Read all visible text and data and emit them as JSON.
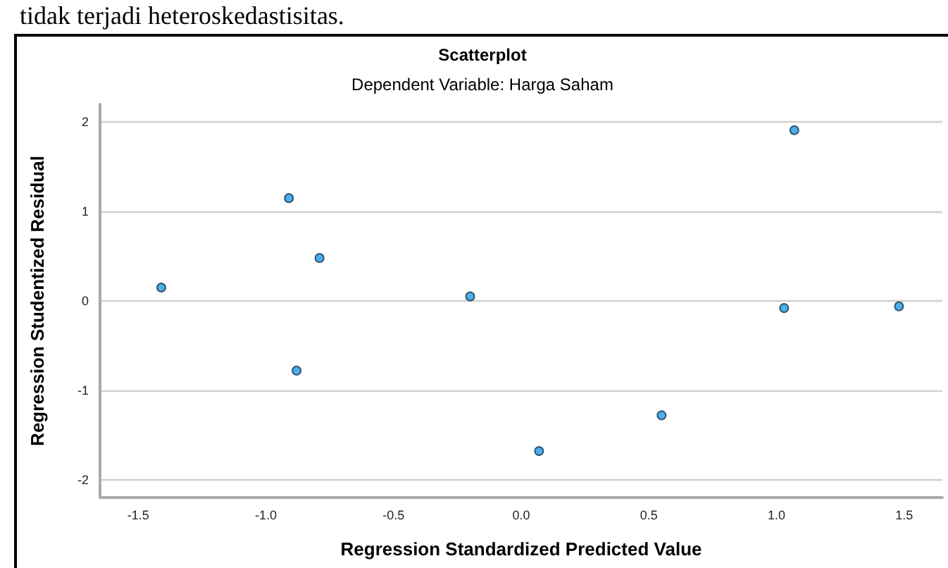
{
  "chart_data": {
    "type": "scatter",
    "title": "Scatterplot",
    "subtitle": "Dependent Variable: Harga Saham",
    "xlabel": "Regression Standardized Predicted Value",
    "ylabel": "Regression Studentized Residual",
    "annotations": [
      "tidak terjadi heteroskedastisitas."
    ],
    "x": [
      -1.41,
      -0.91,
      -0.79,
      -0.88,
      -0.2,
      0.07,
      0.55,
      1.03,
      1.07,
      1.48
    ],
    "series": [
      {
        "color": "#1f9be6",
        "values": [
          0.15,
          1.15,
          0.48,
          -0.78,
          0.05,
          -1.68,
          -1.28,
          -0.08,
          1.91,
          -0.06
        ]
      }
    ],
    "xlim": [
      -1.65,
      1.65
    ],
    "ylim": [
      -2.2,
      2.2
    ],
    "xticks": [
      {
        "value": -1.5,
        "label": "-1.5"
      },
      {
        "value": -1,
        "label": "-1.0"
      },
      {
        "value": -0.5,
        "label": "-0.5"
      },
      {
        "value": 0,
        "label": "0.0"
      },
      {
        "value": 0.5,
        "label": "0.5"
      },
      {
        "value": 1,
        "label": "1.0"
      },
      {
        "value": 1.5,
        "label": "1.5"
      }
    ],
    "yticks": [
      -2,
      -1,
      0,
      1,
      2
    ],
    "grid": "y",
    "marker": "circle"
  }
}
